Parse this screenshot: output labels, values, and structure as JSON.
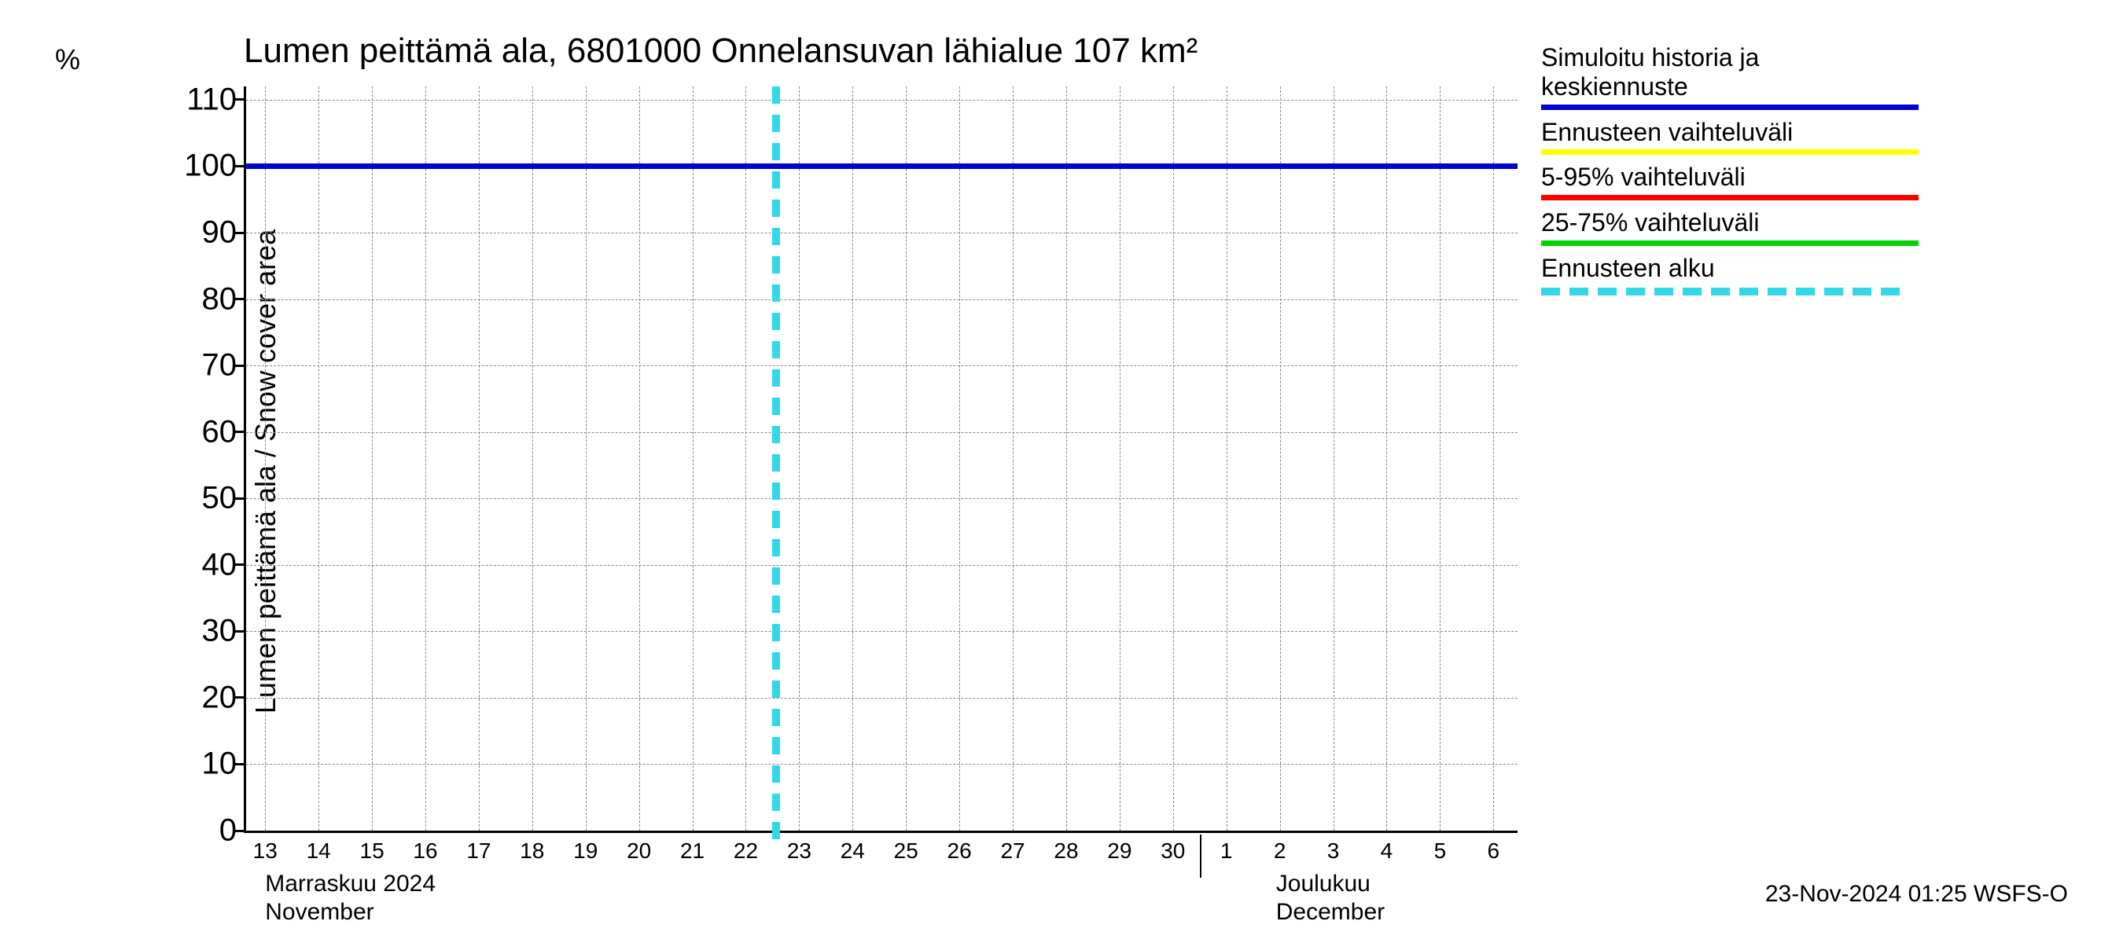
{
  "chart": {
    "type": "line",
    "title": "Lumen peittämä ala, 6801000 Onnelansuvan lähialue 107 km²",
    "y_axis_label": "Lumen peittämä ala / Snow cover area",
    "y_unit": "%",
    "background_color": "#ffffff",
    "grid_color": "#888888",
    "axis_color": "#000000",
    "text_color": "#000000",
    "title_fontsize": 44,
    "axis_label_fontsize": 36,
    "tick_fontsize": 40,
    "xtick_fontsize": 28,
    "ylim": [
      0,
      112
    ],
    "yticks": [
      0,
      10,
      20,
      30,
      40,
      50,
      60,
      70,
      80,
      90,
      100,
      110
    ],
    "x_days": [
      "13",
      "14",
      "15",
      "16",
      "17",
      "18",
      "19",
      "20",
      "21",
      "22",
      "23",
      "24",
      "25",
      "26",
      "27",
      "28",
      "29",
      "30",
      "1",
      "2",
      "3",
      "4",
      "5",
      "6"
    ],
    "x_positions_pct": [
      1.5,
      5.7,
      9.9,
      14.1,
      18.3,
      22.5,
      26.7,
      30.9,
      35.1,
      39.3,
      43.5,
      47.7,
      51.9,
      56.1,
      60.3,
      64.5,
      68.7,
      72.9,
      77.1,
      81.3,
      85.5,
      89.7,
      93.9,
      98.1
    ],
    "month_separator_pct": 75.0,
    "month_labels": [
      {
        "fi": "Marraskuu 2024",
        "en": "November",
        "pos_pct": 1.5
      },
      {
        "fi": "Joulukuu",
        "en": "December",
        "pos_pct": 81.0
      }
    ],
    "series": {
      "main": {
        "value": 100,
        "color": "#0303cc",
        "line_width": 7
      },
      "forecast_start": {
        "x_pct": 41.7,
        "color": "#33d8e8",
        "dash_len": 22,
        "gap_len": 14,
        "line_width": 10
      }
    }
  },
  "legend": {
    "items": [
      {
        "label": "Simuloitu historia ja\nkeskiennuste",
        "color": "#0303cc",
        "style": "solid"
      },
      {
        "label": "Ennusteen vaihteluväli",
        "color": "#ffff00",
        "style": "solid"
      },
      {
        "label": "5-95% vaihteluväli",
        "color": "#ff0000",
        "style": "solid"
      },
      {
        "label": "25-75% vaihteluväli",
        "color": "#00d500",
        "style": "solid"
      },
      {
        "label": "Ennusteen alku",
        "color": "#33d8e8",
        "style": "dashed"
      }
    ]
  },
  "footer": "23-Nov-2024 01:25 WSFS-O"
}
